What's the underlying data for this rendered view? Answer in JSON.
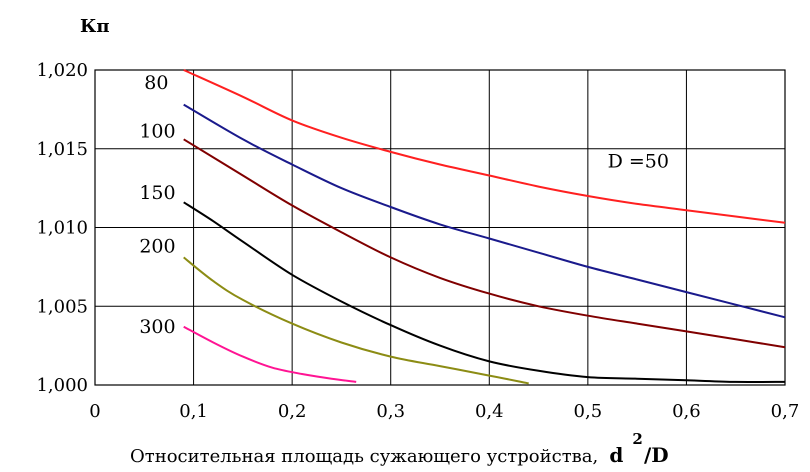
{
  "chart_data": {
    "type": "line",
    "ylabel": "Кп",
    "xlabel_text": "Относительная площадь сужающего устройства,",
    "xlabel_var": "d",
    "xlabel_sup": "2",
    "xlabel_den": "/D",
    "xlim": [
      0,
      0.7
    ],
    "ylim": [
      1.0,
      1.02
    ],
    "x_ticks": [
      {
        "value": 0,
        "label": "0"
      },
      {
        "value": 0.1,
        "label": "0,1"
      },
      {
        "value": 0.2,
        "label": "0,2"
      },
      {
        "value": 0.3,
        "label": "0,3"
      },
      {
        "value": 0.4,
        "label": "0,4"
      },
      {
        "value": 0.5,
        "label": "0,5"
      },
      {
        "value": 0.6,
        "label": "0,6"
      },
      {
        "value": 0.7,
        "label": "0,7"
      }
    ],
    "y_ticks": [
      {
        "value": 1.0,
        "label": "1,000"
      },
      {
        "value": 1.005,
        "label": "1,005"
      },
      {
        "value": 1.01,
        "label": "1,010"
      },
      {
        "value": 1.015,
        "label": "1,015"
      },
      {
        "value": 1.02,
        "label": "1,020"
      }
    ],
    "grid": true,
    "series": [
      {
        "name": "D =50",
        "label_at": [
          0.52,
          1.0138
        ],
        "color": "#ff2020",
        "points": [
          [
            0.09,
            1.02
          ],
          [
            0.15,
            1.0183
          ],
          [
            0.2,
            1.0168
          ],
          [
            0.25,
            1.0157
          ],
          [
            0.3,
            1.0148
          ],
          [
            0.35,
            1.014
          ],
          [
            0.4,
            1.0133
          ],
          [
            0.45,
            1.0126
          ],
          [
            0.5,
            1.012
          ],
          [
            0.55,
            1.0115
          ],
          [
            0.6,
            1.0111
          ],
          [
            0.65,
            1.0107
          ],
          [
            0.7,
            1.0103
          ]
        ]
      },
      {
        "name": "80",
        "label_at": [
          0.05,
          1.0188
        ],
        "color": "#1a1a8c",
        "points": [
          [
            0.09,
            1.0178
          ],
          [
            0.15,
            1.0156
          ],
          [
            0.2,
            1.014
          ],
          [
            0.25,
            1.0125
          ],
          [
            0.3,
            1.0113
          ],
          [
            0.35,
            1.0102
          ],
          [
            0.4,
            1.0093
          ],
          [
            0.45,
            1.0084
          ],
          [
            0.5,
            1.0075
          ],
          [
            0.55,
            1.0067
          ],
          [
            0.6,
            1.0059
          ],
          [
            0.65,
            1.0051
          ],
          [
            0.7,
            1.0043
          ]
        ]
      },
      {
        "name": "100",
        "label_at": [
          0.045,
          1.0157
        ],
        "color": "#800000",
        "points": [
          [
            0.09,
            1.0156
          ],
          [
            0.15,
            1.0133
          ],
          [
            0.2,
            1.0114
          ],
          [
            0.25,
            1.0097
          ],
          [
            0.3,
            1.0081
          ],
          [
            0.35,
            1.0068
          ],
          [
            0.4,
            1.0058
          ],
          [
            0.45,
            1.005
          ],
          [
            0.5,
            1.0044
          ],
          [
            0.55,
            1.0039
          ],
          [
            0.6,
            1.0034
          ],
          [
            0.65,
            1.0029
          ],
          [
            0.7,
            1.0024
          ]
        ]
      },
      {
        "name": "150",
        "label_at": [
          0.045,
          1.0118
        ],
        "color": "#000000",
        "points": [
          [
            0.09,
            1.0116
          ],
          [
            0.12,
            1.0104
          ],
          [
            0.15,
            1.0091
          ],
          [
            0.2,
            1.007
          ],
          [
            0.25,
            1.0053
          ],
          [
            0.3,
            1.0038
          ],
          [
            0.35,
            1.0025
          ],
          [
            0.4,
            1.0015
          ],
          [
            0.45,
            1.0009
          ],
          [
            0.5,
            1.0005
          ],
          [
            0.55,
            1.0004
          ],
          [
            0.6,
            1.0003
          ],
          [
            0.65,
            1.0002
          ],
          [
            0.7,
            1.0002
          ]
        ]
      },
      {
        "name": "200",
        "label_at": [
          0.045,
          1.0084
        ],
        "color": "#8c8c14",
        "points": [
          [
            0.09,
            1.0081
          ],
          [
            0.12,
            1.0066
          ],
          [
            0.15,
            1.0054
          ],
          [
            0.2,
            1.0039
          ],
          [
            0.25,
            1.0027
          ],
          [
            0.3,
            1.0018
          ],
          [
            0.35,
            1.0012
          ],
          [
            0.4,
            1.0006
          ],
          [
            0.44,
            1.0001
          ]
        ]
      },
      {
        "name": "300",
        "label_at": [
          0.045,
          1.0033
        ],
        "color": "#ff1493",
        "points": [
          [
            0.09,
            1.0037
          ],
          [
            0.12,
            1.0027
          ],
          [
            0.15,
            1.0018
          ],
          [
            0.18,
            1.0011
          ],
          [
            0.21,
            1.0007
          ],
          [
            0.24,
            1.0004
          ],
          [
            0.265,
            1.0002
          ]
        ]
      }
    ]
  }
}
